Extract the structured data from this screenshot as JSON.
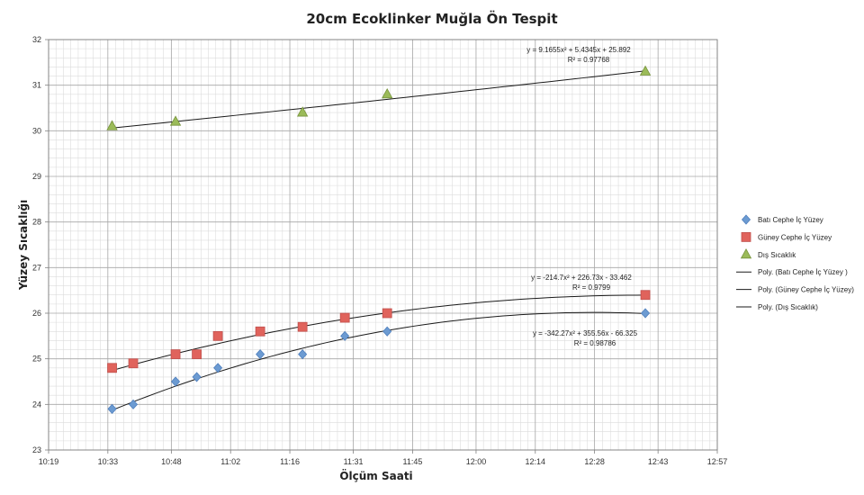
{
  "chart_data": {
    "type": "scatter",
    "title": "20cm Ecoklinker Muğla Ön Tespit",
    "xlabel": "Ölçüm Saati",
    "ylabel": "Yüzey  Sıcaklığı",
    "xlim": [
      "10:19",
      "12:57"
    ],
    "ylim": [
      23,
      32
    ],
    "x_ticks": [
      "10:19",
      "10:33",
      "10:48",
      "11:02",
      "11:16",
      "11:31",
      "11:45",
      "12:00",
      "12:14",
      "12:28",
      "12:43",
      "12:57"
    ],
    "y_ticks": [
      23,
      24,
      25,
      26,
      27,
      28,
      29,
      30,
      31,
      32
    ],
    "grid": true,
    "legend_position": "right",
    "series": [
      {
        "name": "Batı Cephe İç Yüzey",
        "marker": "diamond",
        "color": "#6c9bd2",
        "points": [
          {
            "x": "10:34",
            "y": 23.9
          },
          {
            "x": "10:39",
            "y": 24.0
          },
          {
            "x": "10:49",
            "y": 24.5
          },
          {
            "x": "10:54",
            "y": 24.6
          },
          {
            "x": "10:59",
            "y": 24.8
          },
          {
            "x": "11:09",
            "y": 25.1
          },
          {
            "x": "11:19",
            "y": 25.1
          },
          {
            "x": "11:29",
            "y": 25.5
          },
          {
            "x": "11:39",
            "y": 25.6
          },
          {
            "x": "12:40",
            "y": 26.0
          }
        ]
      },
      {
        "name": "Güney Cephe İç Yüzey",
        "marker": "square",
        "color": "#e0635c",
        "points": [
          {
            "x": "10:34",
            "y": 24.8
          },
          {
            "x": "10:39",
            "y": 24.9
          },
          {
            "x": "10:49",
            "y": 25.1
          },
          {
            "x": "10:54",
            "y": 25.1
          },
          {
            "x": "10:59",
            "y": 25.5
          },
          {
            "x": "11:09",
            "y": 25.6
          },
          {
            "x": "11:19",
            "y": 25.7
          },
          {
            "x": "11:29",
            "y": 25.9
          },
          {
            "x": "11:39",
            "y": 26.0
          },
          {
            "x": "12:40",
            "y": 26.4
          }
        ]
      },
      {
        "name": "Dış Sıcaklık",
        "marker": "triangle",
        "color": "#9bbb59",
        "points": [
          {
            "x": "10:34",
            "y": 30.1
          },
          {
            "x": "10:49",
            "y": 30.2
          },
          {
            "x": "11:19",
            "y": 30.4
          },
          {
            "x": "11:39",
            "y": 30.8
          },
          {
            "x": "12:40",
            "y": 31.3
          }
        ]
      }
    ],
    "trendlines": [
      {
        "name": "Poly. (Batı Cephe İç Yüzey )",
        "equation": "y = -342.27x² + 355.56x - 66.325",
        "r2": "R² = 0.98786",
        "coefficients": [
          -342.27,
          355.56,
          -66.325
        ],
        "x_unit": "fraction of day"
      },
      {
        "name": "Poly. (Güney Cephe İç Yüzey)",
        "equation": "y = -214.7x² + 226.73x - 33.462",
        "r2": "R² = 0.9799",
        "coefficients": [
          -214.7,
          226.73,
          -33.462
        ],
        "x_unit": "fraction of day"
      },
      {
        "name": "Poly. (Dış Sıcaklık)",
        "equation": "y = 9.1655x² + 5.4345x + 25.892",
        "r2": "R² = 0.97768",
        "coefficients": [
          9.1655,
          5.4345,
          25.892
        ],
        "x_unit": "fraction of day"
      }
    ]
  }
}
